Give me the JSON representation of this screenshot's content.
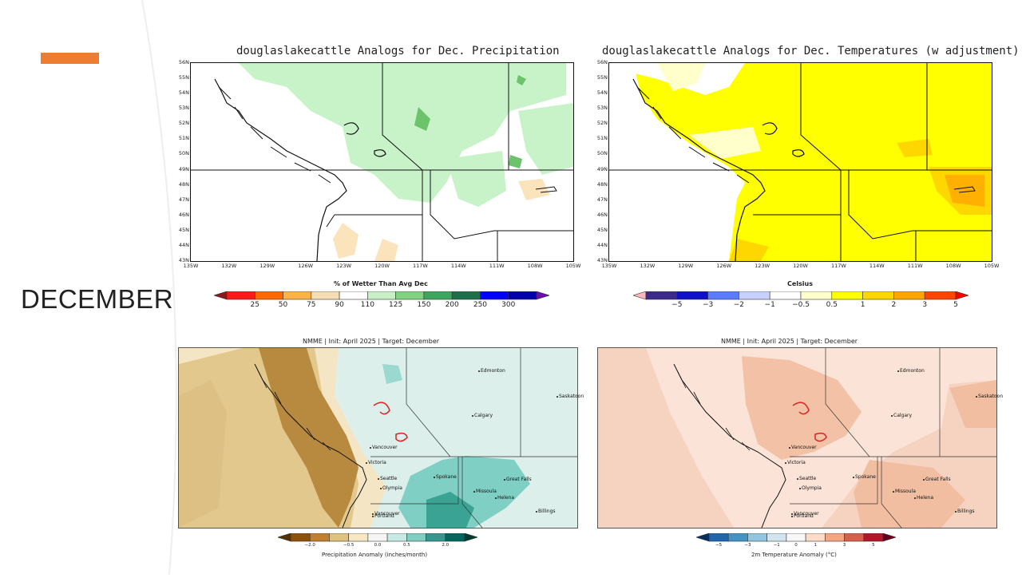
{
  "slide": {
    "month_label": "DECEMBER",
    "accent_color": "#ed7d31"
  },
  "panels": {
    "analog_precip": {
      "title": "douglaslakecattle Analogs for Dec. Precipitation",
      "lat_labels": [
        "56N",
        "55N",
        "54N",
        "53N",
        "52N",
        "51N",
        "50N",
        "49N",
        "48N",
        "47N",
        "46N",
        "45N",
        "44N",
        "43N"
      ],
      "lon_labels": [
        "135W",
        "132W",
        "129W",
        "126W",
        "123W",
        "120W",
        "117W",
        "114W",
        "111W",
        "108W",
        "105W"
      ],
      "colorbar": {
        "title": "% of Wetter Than Avg Dec",
        "ticks": [
          "25",
          "50",
          "75",
          "90",
          "110",
          "125",
          "150",
          "200",
          "250",
          "300"
        ],
        "colors": [
          "#8b1a1a",
          "#ff1a1a",
          "#ff6a00",
          "#ffb347",
          "#f5deb3",
          "#ffffff",
          "#c7f0c7",
          "#7fd37f",
          "#3da55d",
          "#1f6f4a",
          "#0000ff",
          "#0000aa",
          "#6a0dad"
        ]
      }
    },
    "analog_temp": {
      "title": "douglaslakecattle Analogs for Dec. Temperatures (w adjustment)",
      "lat_labels": [
        "56N",
        "55N",
        "54N",
        "53N",
        "52N",
        "51N",
        "50N",
        "49N",
        "48N",
        "47N",
        "46N",
        "45N",
        "44N",
        "43N"
      ],
      "lon_labels": [
        "135W",
        "132W",
        "129W",
        "126W",
        "123W",
        "120W",
        "117W",
        "114W",
        "111W",
        "108W",
        "105W"
      ],
      "colorbar": {
        "title": "Celsius",
        "ticks": [
          "−5",
          "−3",
          "−2",
          "−1",
          "−0.5",
          "0.5",
          "1",
          "2",
          "3",
          "5"
        ],
        "colors": [
          "#ffb6c1",
          "#3b2a8a",
          "#1010c8",
          "#5a7cff",
          "#c8d0ff",
          "#ffffff",
          "#ffffcc",
          "#ffff00",
          "#ffd700",
          "#ffa500",
          "#ff4500",
          "#ff0000"
        ]
      }
    },
    "nmme_precip": {
      "title": "NMME | Init: April 2025 | Target: December",
      "cities": [
        "Edmonton",
        "Saskatoon",
        "Calgary",
        "Vancouver",
        "Victoria",
        "Seattle",
        "Olympia",
        "Spokane",
        "Great Falls",
        "Missoula",
        "Helena",
        "Billings",
        "Vancouver",
        "Portland"
      ],
      "colorbar": {
        "title": "Precipitation Anomaly (inches/month)",
        "ticks": [
          "−2.0",
          "−0.5",
          "0.0",
          "0.5",
          "2.0"
        ],
        "colors": [
          "#543005",
          "#8c510a",
          "#bf812d",
          "#dfc27d",
          "#f6e8c3",
          "#f5f5f5",
          "#c7eae5",
          "#80cdc1",
          "#35978f",
          "#01665e",
          "#003c30"
        ]
      }
    },
    "nmme_temp": {
      "title": "NMME | Init: April 2025 | Target: December",
      "cities": [
        "Edmonton",
        "Saskatoon",
        "Calgary",
        "Vancouver",
        "Victoria",
        "Seattle",
        "Olympia",
        "Spokane",
        "Great Falls",
        "Missoula",
        "Helena",
        "Billings",
        "Vancouver",
        "Portland"
      ],
      "colorbar": {
        "title": "2m Temperature Anomaly (°C)",
        "ticks": [
          "−5",
          "−3",
          "−1",
          "0",
          "1",
          "3",
          "5"
        ],
        "colors": [
          "#053061",
          "#2166ac",
          "#4393c3",
          "#92c5de",
          "#d1e5f0",
          "#f7f7f7",
          "#fddbc7",
          "#f4a582",
          "#d6604d",
          "#b2182b",
          "#67001f"
        ]
      }
    }
  }
}
